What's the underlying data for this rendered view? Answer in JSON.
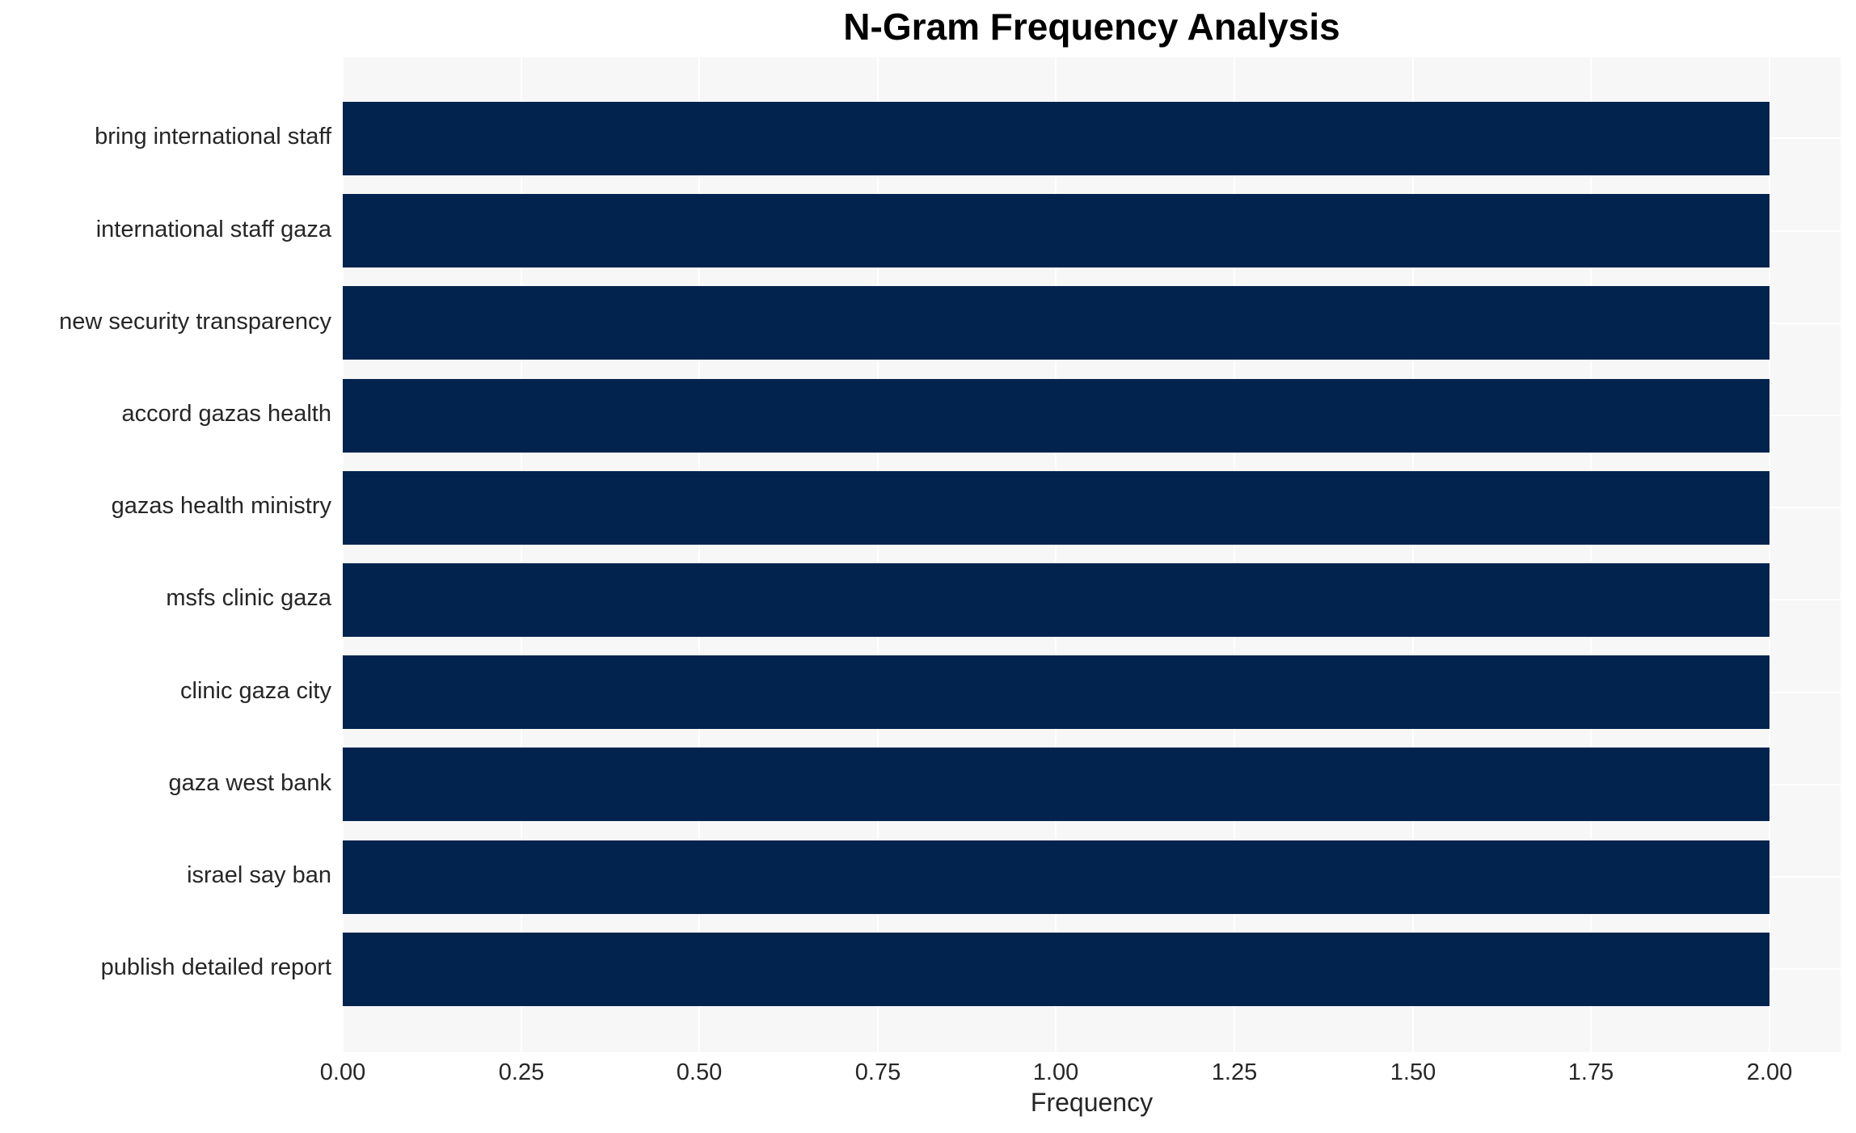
{
  "chart_data": {
    "type": "bar",
    "orientation": "horizontal",
    "title": "N-Gram Frequency Analysis",
    "xlabel": "Frequency",
    "ylabel": "",
    "categories": [
      "bring international staff",
      "international staff gaza",
      "new security transparency",
      "accord gazas health",
      "gazas health ministry",
      "msfs clinic gaza",
      "clinic gaza city",
      "gaza west bank",
      "israel say ban",
      "publish detailed report"
    ],
    "values": [
      2,
      2,
      2,
      2,
      2,
      2,
      2,
      2,
      2,
      2
    ],
    "xlim": [
      0,
      2.1
    ],
    "xticks": [
      0,
      0.25,
      0.5,
      0.75,
      1.0,
      1.25,
      1.5,
      1.75,
      2.0
    ],
    "xtick_labels": [
      "0.00",
      "0.25",
      "0.50",
      "0.75",
      "1.00",
      "1.25",
      "1.50",
      "1.75",
      "2.00"
    ],
    "grid": true,
    "legend_position": "none",
    "colors": {
      "bar": "#02234d",
      "plot_background": "#f7f7f7",
      "gridline": "#ffffff",
      "tick_text": "#262626",
      "title_text": "#000000"
    }
  }
}
